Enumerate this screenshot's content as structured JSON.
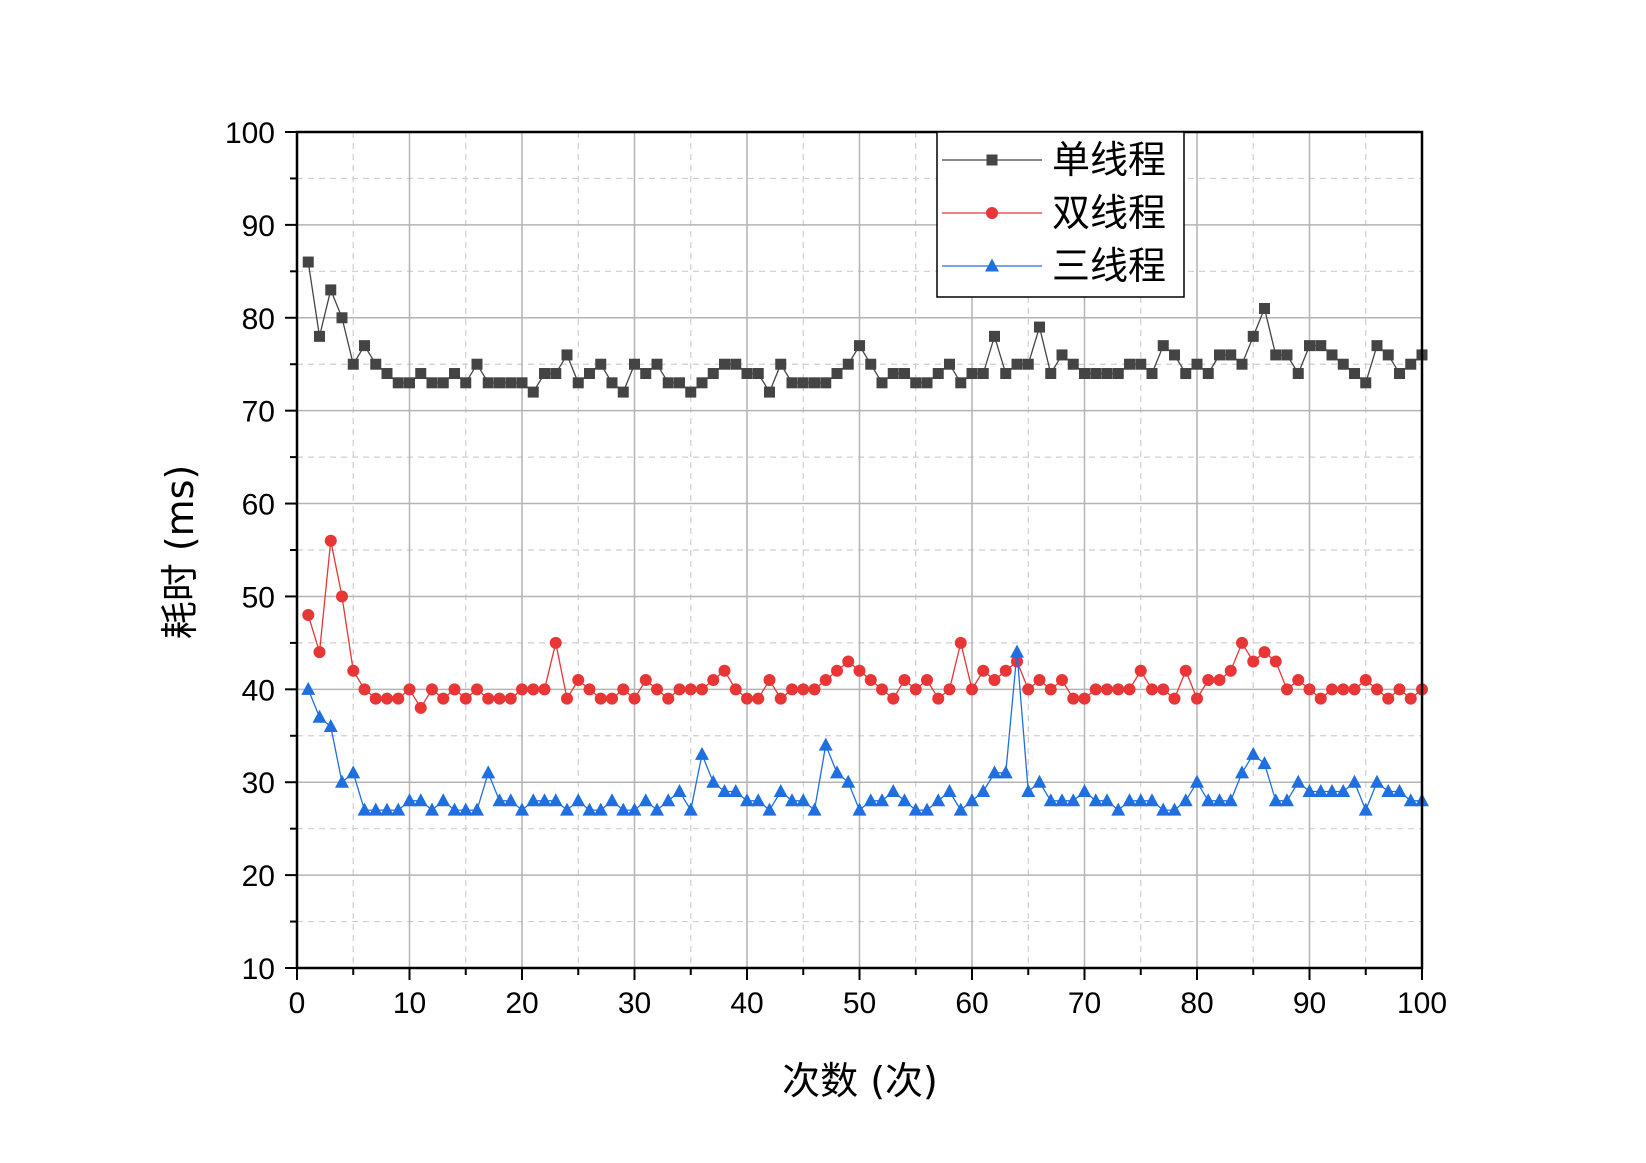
{
  "chart_data": {
    "type": "line",
    "title": "",
    "xlabel": "次数 (次)",
    "ylabel": "耗时 (ms)",
    "xlim": [
      0,
      100
    ],
    "ylim": [
      10,
      100
    ],
    "x_ticks": [
      0,
      10,
      20,
      30,
      40,
      50,
      60,
      70,
      80,
      90,
      100
    ],
    "y_ticks": [
      10,
      20,
      30,
      40,
      50,
      60,
      70,
      80,
      90,
      100
    ],
    "grid": true,
    "minor_grid": true,
    "legend_position": "top-right",
    "x": [
      1,
      2,
      3,
      4,
      5,
      6,
      7,
      8,
      9,
      10,
      11,
      12,
      13,
      14,
      15,
      16,
      17,
      18,
      19,
      20,
      21,
      22,
      23,
      24,
      25,
      26,
      27,
      28,
      29,
      30,
      31,
      32,
      33,
      34,
      35,
      36,
      37,
      38,
      39,
      40,
      41,
      42,
      43,
      44,
      45,
      46,
      47,
      48,
      49,
      50,
      51,
      52,
      53,
      54,
      55,
      56,
      57,
      58,
      59,
      60,
      61,
      62,
      63,
      64,
      65,
      66,
      67,
      68,
      69,
      70,
      71,
      72,
      73,
      74,
      75,
      76,
      77,
      78,
      79,
      80,
      81,
      82,
      83,
      84,
      85,
      86,
      87,
      88,
      89,
      90,
      91,
      92,
      93,
      94,
      95,
      96,
      97,
      98,
      99,
      100
    ],
    "series": [
      {
        "name": "单线程",
        "color": "#444444",
        "marker": "square",
        "values": [
          86,
          78,
          83,
          80,
          75,
          77,
          75,
          74,
          73,
          73,
          74,
          73,
          73,
          74,
          73,
          75,
          73,
          73,
          73,
          73,
          72,
          74,
          74,
          76,
          73,
          74,
          75,
          73,
          72,
          75,
          74,
          75,
          73,
          73,
          72,
          73,
          74,
          75,
          75,
          74,
          74,
          72,
          75,
          73,
          73,
          73,
          73,
          74,
          75,
          77,
          75,
          73,
          74,
          74,
          73,
          73,
          74,
          75,
          73,
          74,
          74,
          78,
          74,
          75,
          75,
          79,
          74,
          76,
          75,
          74,
          74,
          74,
          74,
          75,
          75,
          74,
          77,
          76,
          74,
          75,
          74,
          76,
          76,
          75,
          78,
          81,
          76,
          76,
          74,
          77,
          77,
          76,
          75,
          74,
          73,
          77,
          76,
          74,
          75,
          76
        ]
      },
      {
        "name": "双线程",
        "color": "#e83535",
        "marker": "circle",
        "values": [
          48,
          44,
          56,
          50,
          42,
          40,
          39,
          39,
          39,
          40,
          38,
          40,
          39,
          40,
          39,
          40,
          39,
          39,
          39,
          40,
          40,
          40,
          45,
          39,
          41,
          40,
          39,
          39,
          40,
          39,
          41,
          40,
          39,
          40,
          40,
          40,
          41,
          42,
          40,
          39,
          39,
          41,
          39,
          40,
          40,
          40,
          41,
          42,
          43,
          42,
          41,
          40,
          39,
          41,
          40,
          41,
          39,
          40,
          45,
          40,
          42,
          41,
          42,
          43,
          40,
          41,
          40,
          41,
          39,
          39,
          40,
          40,
          40,
          40,
          42,
          40,
          40,
          39,
          42,
          39,
          41,
          41,
          42,
          45,
          43,
          44,
          43,
          40,
          41,
          40,
          39,
          40,
          40,
          40,
          41,
          40,
          39,
          40,
          39,
          40
        ]
      },
      {
        "name": "三线程",
        "color": "#1f6fe0",
        "marker": "triangle",
        "values": [
          40,
          37,
          36,
          30,
          31,
          27,
          27,
          27,
          27,
          28,
          28,
          27,
          28,
          27,
          27,
          27,
          31,
          28,
          28,
          27,
          28,
          28,
          28,
          27,
          28,
          27,
          27,
          28,
          27,
          27,
          28,
          27,
          28,
          29,
          27,
          33,
          30,
          29,
          29,
          28,
          28,
          27,
          29,
          28,
          28,
          27,
          34,
          31,
          30,
          27,
          28,
          28,
          29,
          28,
          27,
          27,
          28,
          29,
          27,
          28,
          29,
          31,
          31,
          44,
          29,
          30,
          28,
          28,
          28,
          29,
          28,
          28,
          27,
          28,
          28,
          28,
          27,
          27,
          28,
          30,
          28,
          28,
          28,
          31,
          33,
          32,
          28,
          28,
          30,
          29,
          29,
          29,
          29,
          30,
          27,
          30,
          29,
          29,
          28,
          28
        ]
      }
    ]
  }
}
